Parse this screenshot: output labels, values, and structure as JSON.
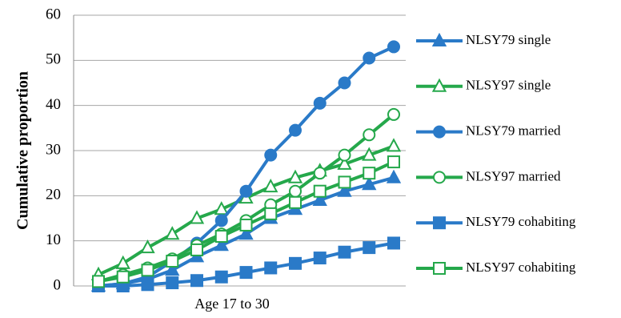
{
  "chart_data": {
    "type": "line",
    "y_label": "Cumulative proportion",
    "x_label": "Age 17 to 30",
    "categories": [
      null,
      null,
      null,
      null,
      null,
      null,
      null,
      null,
      null,
      null,
      null,
      null,
      null
    ],
    "series": [
      {
        "name": "NLSY79 single",
        "color": "#2a7ac8",
        "marker": "triangle",
        "filled": true,
        "values": [
          0,
          0.5,
          1.5,
          3.5,
          6.5,
          9,
          11.5,
          15,
          17,
          19,
          21,
          22.5,
          24
        ]
      },
      {
        "name": "NLSY97 single",
        "color": "#25a84b",
        "marker": "triangle",
        "filled": false,
        "values": [
          2.5,
          5,
          8.5,
          11.5,
          15,
          17,
          19.5,
          22,
          24,
          25.5,
          27,
          29,
          31
        ]
      },
      {
        "name": "NLSY79 married",
        "color": "#2a7ac8",
        "marker": "circle",
        "filled": true,
        "values": [
          0,
          0.5,
          2,
          5.5,
          9.5,
          14.5,
          21,
          29,
          34.5,
          40.5,
          45,
          50.5,
          53
        ]
      },
      {
        "name": "NLSY97 married",
        "color": "#25a84b",
        "marker": "circle",
        "filled": false,
        "values": [
          1,
          2.5,
          4,
          6,
          9,
          11.5,
          14.5,
          18,
          21,
          25,
          29,
          33.5,
          38
        ]
      },
      {
        "name": "NLSY79 cohabiting",
        "color": "#2a7ac8",
        "marker": "square",
        "filled": true,
        "values": [
          0,
          0,
          0.3,
          0.7,
          1.2,
          2,
          3,
          4,
          5,
          6.2,
          7.5,
          8.5,
          9.5
        ]
      },
      {
        "name": "NLSY97 cohabiting",
        "color": "#25a84b",
        "marker": "square",
        "filled": false,
        "values": [
          1,
          2,
          3.5,
          5.5,
          8,
          11,
          13.5,
          16,
          18.5,
          21,
          23,
          25,
          27.5
        ]
      }
    ],
    "ylim": [
      0,
      60
    ],
    "yticks": [
      0,
      10,
      20,
      30,
      40,
      50,
      60
    ],
    "grid": true
  }
}
